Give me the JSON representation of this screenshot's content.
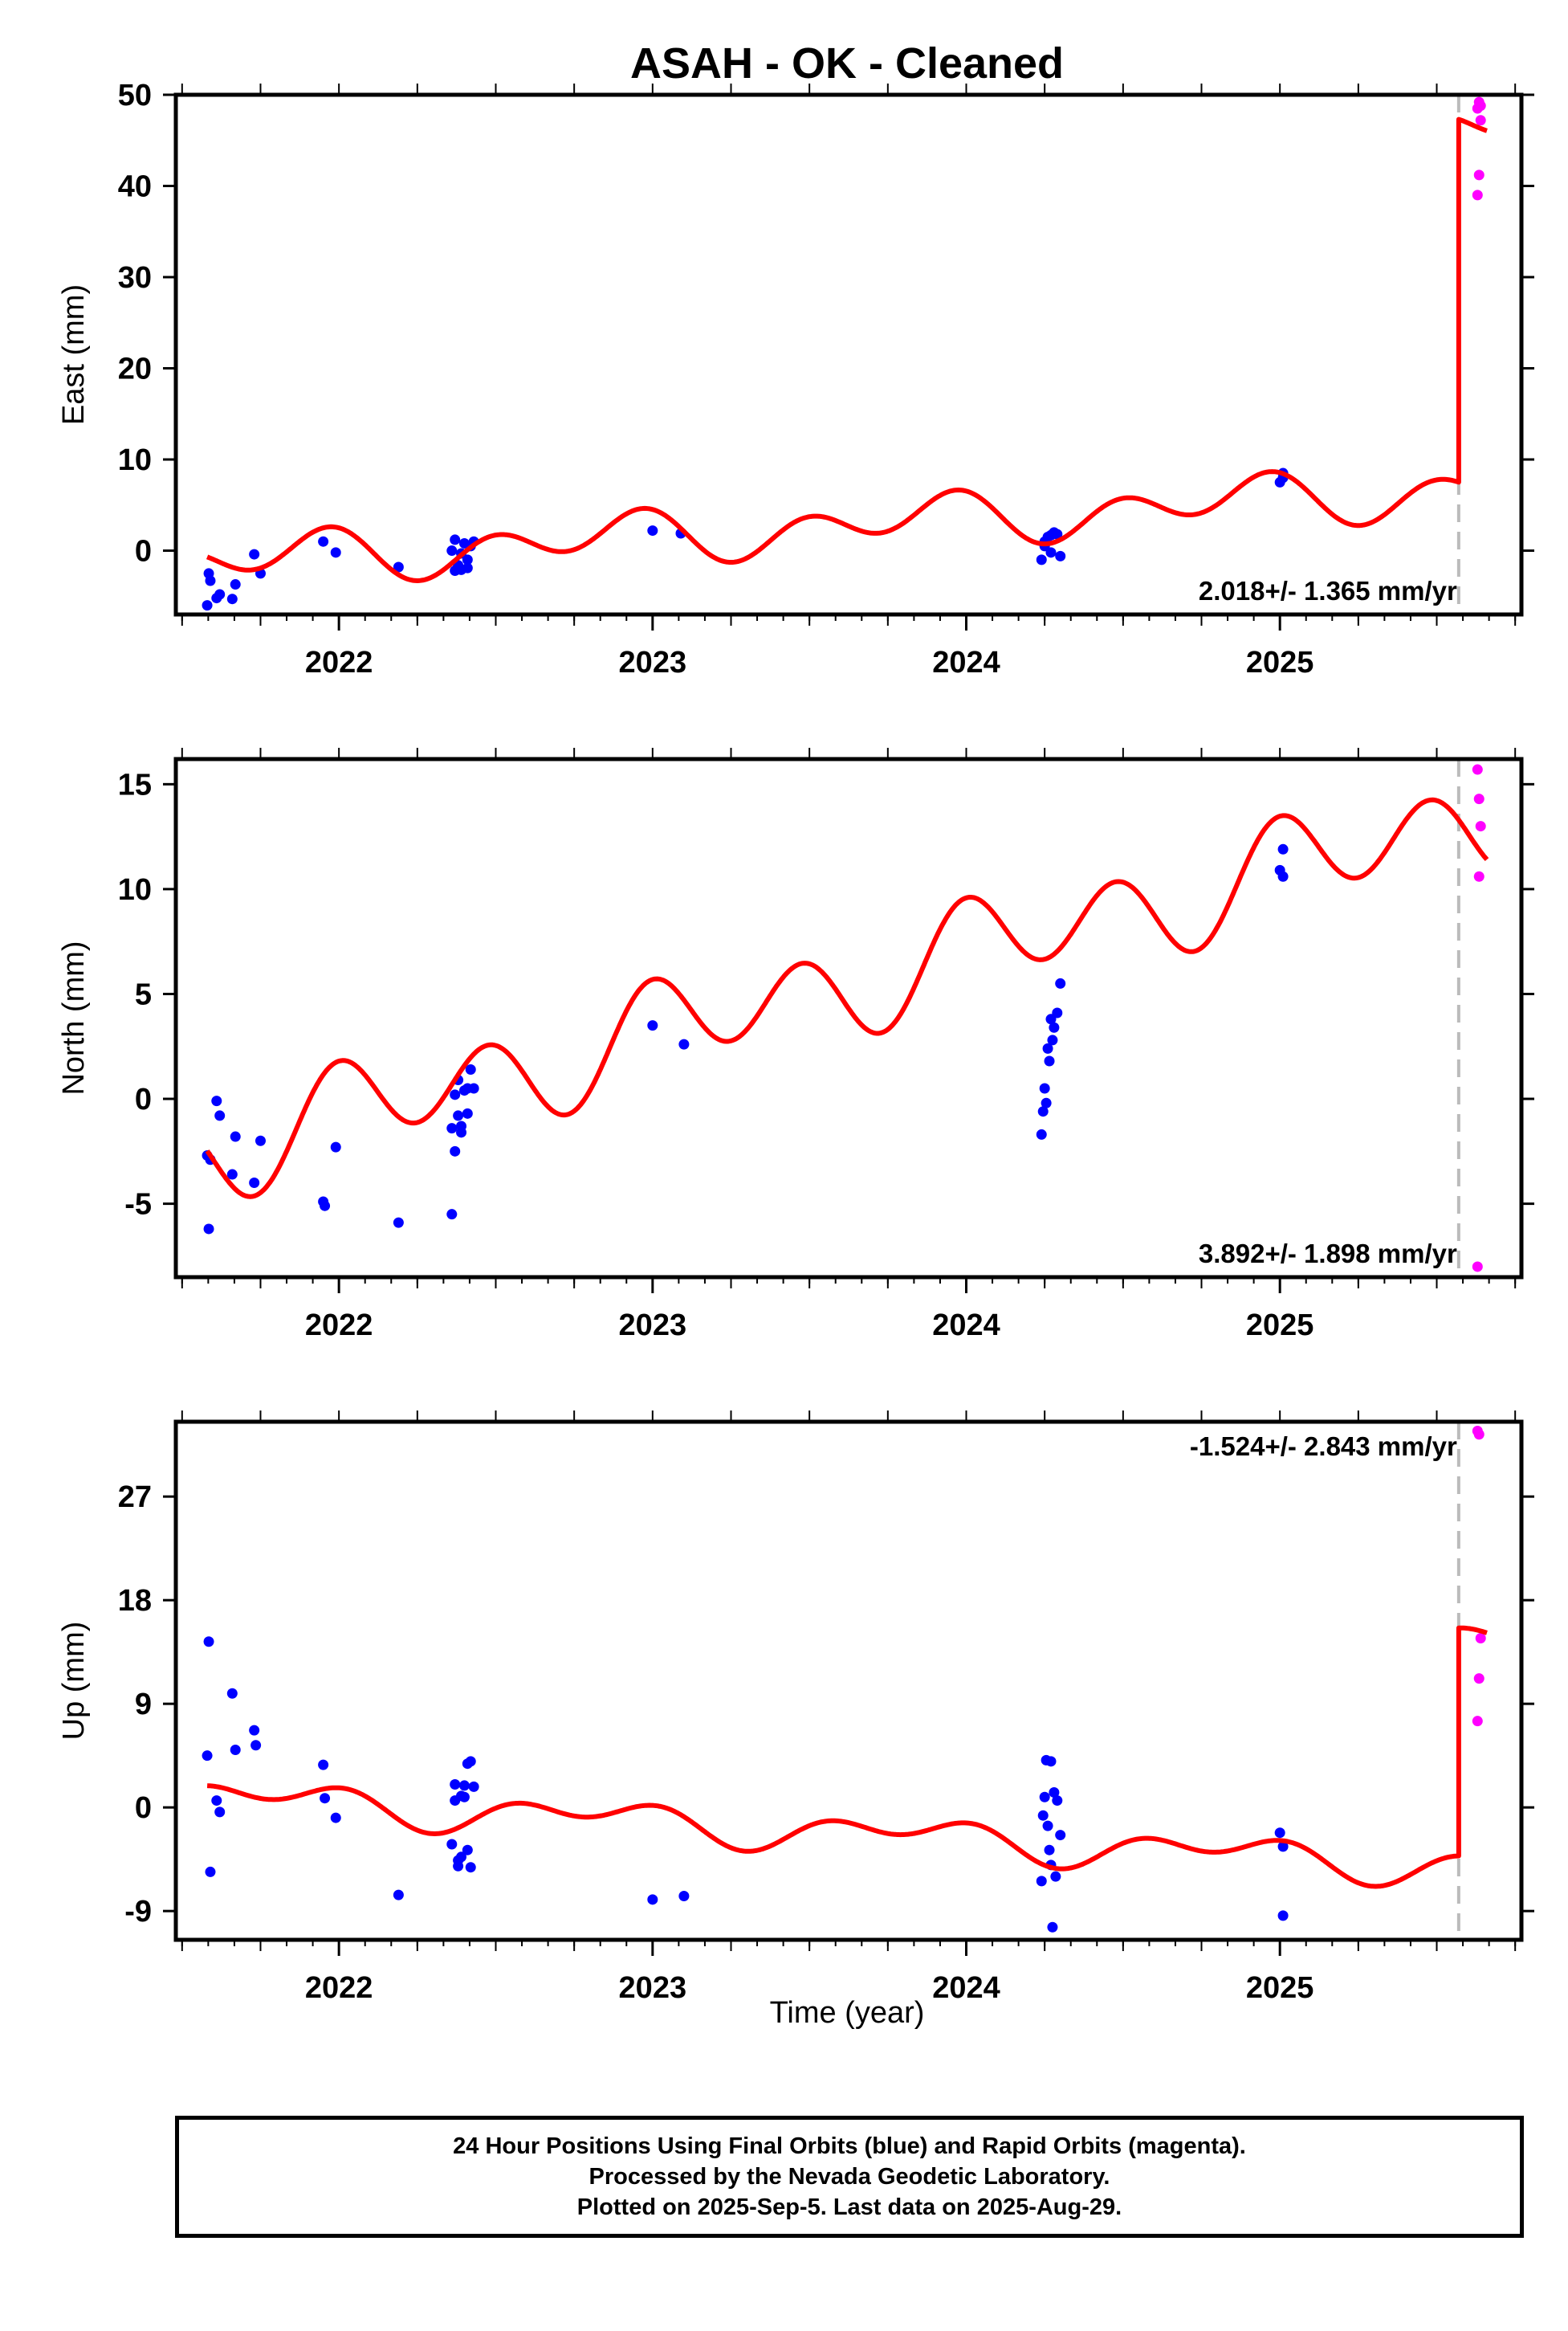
{
  "title": "ASAH  - OK - Cleaned",
  "xlabel": "Time (year)",
  "footer": {
    "line1": "24 Hour Positions Using Final Orbits (blue) and Rapid Orbits (magenta).",
    "line2": "Processed by the Nevada Geodetic Laboratory.",
    "line3": "Plotted on 2025-Sep-5. Last data on 2025-Aug-29."
  },
  "colors": {
    "final": "#0000ff",
    "rapid": "#ff00ff",
    "model": "#ff0000",
    "step_line": "#bbbbbb"
  },
  "chart_data": [
    {
      "type": "scatter",
      "component": "east",
      "ylabel": "East (mm)",
      "rate_label": "2.018+/- 1.365 mm/yr",
      "xlim": [
        2021.48,
        2025.77
      ],
      "ylim": [
        -7,
        50
      ],
      "yticks": [
        0,
        10,
        20,
        30,
        40,
        50
      ],
      "xticks": [
        2022,
        2023,
        2024,
        2025
      ],
      "step_epoch": 2025.57,
      "final_orbits": {
        "x": [
          2021.58,
          2021.585,
          2021.59,
          2021.61,
          2021.62,
          2021.66,
          2021.67,
          2021.73,
          2021.75,
          2021.95,
          2021.99,
          2022.19,
          2022.36,
          2022.37,
          2022.38,
          2022.39,
          2022.4,
          2022.41,
          2022.42,
          2022.43,
          2022.37,
          2022.39,
          2022.41,
          2023.0,
          2023.09,
          2024.24,
          2024.25,
          2024.26,
          2024.27,
          2024.28,
          2024.29,
          2024.3,
          2024.25,
          2024.27,
          2025.0,
          2025.01,
          2025.01
        ],
        "y": [
          -6,
          -2.5,
          -3.3,
          -5.2,
          -4.8,
          -5.3,
          -3.7,
          -0.4,
          -2.5,
          1.0,
          -0.2,
          -1.8,
          0.0,
          1.2,
          -1.6,
          -0.3,
          0.8,
          -1.9,
          0.5,
          1.0,
          -2.2,
          -2.1,
          -1.0,
          2.2,
          1.9,
          -1.0,
          0.5,
          1.5,
          -0.2,
          2.0,
          1.8,
          -0.6,
          1.0,
          1.7,
          7.5,
          8.5,
          8.0
        ]
      },
      "rapid_orbits": {
        "x": [
          2025.63,
          2025.635,
          2025.64,
          2025.635,
          2025.63,
          2025.64
        ],
        "y": [
          48.5,
          49.2,
          47.2,
          41.2,
          39.0,
          48.8
        ]
      },
      "model": {
        "mean": [
          2022.0,
          -0.5,
          2.018
        ],
        "annual": [
          -1.2,
          0.9
        ],
        "semiannual": [
          -0.3,
          2.1
        ],
        "step": 39.8
      }
    },
    {
      "type": "scatter",
      "component": "north",
      "ylabel": "North (mm)",
      "rate_label": "3.892+/- 1.898 mm/yr",
      "xlim": [
        2021.48,
        2025.77
      ],
      "ylim": [
        -8.5,
        16.2
      ],
      "yticks": [
        -5,
        0,
        5,
        10,
        15
      ],
      "xticks": [
        2022,
        2023,
        2024,
        2025
      ],
      "step_epoch": 2025.57,
      "final_orbits": {
        "x": [
          2021.58,
          2021.585,
          2021.59,
          2021.61,
          2021.62,
          2021.66,
          2021.67,
          2021.73,
          2021.75,
          2021.95,
          2021.955,
          2021.99,
          2022.19,
          2022.36,
          2022.37,
          2022.38,
          2022.39,
          2022.4,
          2022.41,
          2022.42,
          2022.43,
          2022.37,
          2022.39,
          2022.41,
          2022.36,
          2022.38,
          2023.0,
          2023.1,
          2024.24,
          2024.25,
          2024.26,
          2024.27,
          2024.28,
          2024.29,
          2024.3,
          2024.245,
          2024.255,
          2024.265,
          2024.275,
          2025.0,
          2025.01,
          2025.01
        ],
        "y": [
          -2.7,
          -6.2,
          -2.9,
          -0.1,
          -0.8,
          -3.6,
          -1.8,
          -4.0,
          -2.0,
          -4.9,
          -5.1,
          -2.3,
          -5.9,
          -1.4,
          0.2,
          0.9,
          -1.6,
          0.4,
          -0.7,
          1.4,
          0.5,
          -2.5,
          -1.3,
          0.5,
          -5.5,
          -0.8,
          3.5,
          2.6,
          -1.7,
          0.5,
          2.4,
          3.8,
          3.4,
          4.1,
          5.5,
          -0.6,
          -0.2,
          1.8,
          2.8,
          10.9,
          11.9,
          10.6
        ]
      },
      "rapid_orbits": {
        "x": [
          2025.63,
          2025.635,
          2025.64,
          2025.635,
          2025.63
        ],
        "y": [
          15.7,
          14.3,
          13.0,
          10.6,
          -8.0
        ]
      },
      "model": {
        "mean": [
          2022.0,
          -0.8,
          3.892
        ],
        "annual": [
          0.7,
          0.6
        ],
        "semiannual": [
          -0.3,
          2.0
        ],
        "step": 0.0
      }
    },
    {
      "type": "scatter",
      "component": "up",
      "ylabel": "Up (mm)",
      "rate_label": "-1.524+/- 2.843 mm/yr",
      "xlim": [
        2021.48,
        2025.77
      ],
      "ylim": [
        -11.5,
        33.5
      ],
      "yticks": [
        -9,
        0,
        9,
        18,
        27
      ],
      "xticks": [
        2022,
        2023,
        2024,
        2025
      ],
      "step_epoch": 2025.57,
      "final_orbits": {
        "x": [
          2021.58,
          2021.585,
          2021.59,
          2021.61,
          2021.62,
          2021.66,
          2021.67,
          2021.73,
          2021.735,
          2021.95,
          2021.955,
          2021.99,
          2022.19,
          2022.36,
          2022.37,
          2022.38,
          2022.39,
          2022.4,
          2022.41,
          2022.42,
          2022.43,
          2022.37,
          2022.39,
          2022.41,
          2022.38,
          2022.4,
          2022.42,
          2023.0,
          2023.1,
          2024.24,
          2024.25,
          2024.26,
          2024.27,
          2024.28,
          2024.29,
          2024.3,
          2024.245,
          2024.255,
          2024.265,
          2024.275,
          2024.285,
          2024.27,
          2025.0,
          2025.01,
          2025.01
        ],
        "y": [
          4.5,
          14.4,
          -5.6,
          0.6,
          -0.4,
          9.9,
          5.0,
          6.7,
          5.4,
          3.7,
          0.8,
          -0.9,
          -7.6,
          -3.2,
          2.0,
          -5.1,
          -4.3,
          1.9,
          -3.7,
          4.0,
          1.8,
          0.6,
          1.0,
          3.8,
          -4.6,
          0.9,
          -5.2,
          -8.0,
          -7.7,
          -6.4,
          0.9,
          -1.6,
          4.0,
          1.3,
          0.6,
          -2.4,
          -0.7,
          4.1,
          -3.7,
          -10.4,
          -6.0,
          -5.0,
          -2.2,
          -3.4,
          -9.4
        ]
      },
      "rapid_orbits": {
        "x": [
          2025.63,
          2025.635,
          2025.64,
          2025.635,
          2025.63
        ],
        "y": [
          32.7,
          32.4,
          14.7,
          11.2,
          7.5
        ]
      },
      "model": {
        "mean": [
          2022.0,
          0.3,
          -1.524
        ],
        "annual": [
          -1.0,
          0.5
        ],
        "semiannual": [
          0.5,
          0.9
        ],
        "step": 19.8
      }
    }
  ]
}
